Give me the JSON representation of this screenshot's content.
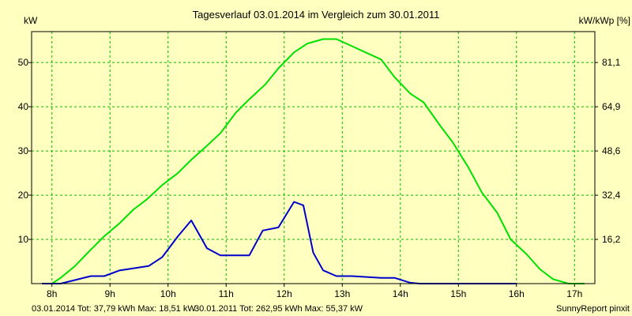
{
  "chart_data": {
    "type": "line",
    "title": "Tagesverlauf 03.01.2014 im Vergleich zum 30.01.2011",
    "ylabel_left": "kW",
    "ylabel_right": "kW/kWp [%]",
    "ylim": [
      0,
      57
    ],
    "xlim": [
      7.65,
      17.35
    ],
    "x_ticks": [
      8,
      9,
      10,
      11,
      12,
      13,
      14,
      15,
      16,
      17
    ],
    "x_tick_labels": [
      "8h",
      "9h",
      "10h",
      "11h",
      "12h",
      "13h",
      "14h",
      "15h",
      "16h",
      "17h"
    ],
    "y_ticks_left": [
      10,
      20,
      30,
      40,
      50
    ],
    "y_tick_labels_left": [
      "10",
      "20",
      "30",
      "40",
      "50"
    ],
    "y_ticks_right": [
      10,
      20,
      30,
      40,
      50
    ],
    "y_tick_labels_right": [
      "16,2",
      "32,4",
      "48,6",
      "64,9",
      "81,1"
    ],
    "grid": true,
    "series": [
      {
        "name": "03.01.2014",
        "color": "#0000cc",
        "x": [
          7.83,
          8.15,
          8.67,
          8.9,
          9.17,
          9.33,
          9.67,
          9.9,
          10.17,
          10.4,
          10.67,
          10.9,
          11.17,
          11.4,
          11.63,
          11.9,
          12.17,
          12.33,
          12.5,
          12.67,
          12.9,
          13.17,
          13.67,
          13.9,
          14.17,
          14.33,
          15.0,
          15.5,
          16.0
        ],
        "values": [
          0,
          0,
          1.7,
          1.7,
          3.0,
          3.3,
          4.0,
          6.0,
          10.7,
          14.3,
          8.0,
          6.4,
          6.4,
          6.4,
          12.0,
          12.7,
          18.5,
          17.7,
          7.0,
          3.0,
          1.7,
          1.7,
          1.3,
          1.3,
          0.2,
          0,
          0,
          0,
          0
        ]
      },
      {
        "name": "30.01.2011",
        "color": "#00e000",
        "x": [
          7.83,
          8.0,
          8.15,
          8.4,
          8.67,
          8.9,
          9.17,
          9.4,
          9.63,
          9.9,
          10.17,
          10.4,
          10.63,
          10.9,
          11.17,
          11.4,
          11.67,
          11.9,
          12.17,
          12.4,
          12.67,
          12.9,
          13.17,
          13.4,
          13.67,
          13.9,
          14.17,
          14.4,
          14.67,
          14.9,
          15.17,
          15.4,
          15.67,
          15.9,
          16.17,
          16.4,
          16.63,
          16.9,
          17.17
        ],
        "values": [
          0,
          0,
          1.3,
          4.0,
          7.7,
          10.7,
          13.7,
          16.7,
          19.0,
          22.3,
          25.0,
          28.0,
          30.7,
          34.0,
          38.7,
          41.7,
          45.0,
          48.7,
          52.3,
          54.3,
          55.3,
          55.3,
          53.7,
          52.3,
          50.7,
          46.7,
          43.0,
          41.0,
          36.0,
          32.0,
          26.3,
          20.7,
          16.0,
          10.0,
          6.7,
          3.3,
          1.0,
          0,
          0
        ]
      }
    ],
    "legend": [
      {
        "text": "03.01.2014 Tot: 37,79 kWh Max: 18,51 kW",
        "color": "#0000cc"
      },
      {
        "text": "30.01.2011 Tot: 262,95 kWh Max: 55,37 kW",
        "color": "#00e000"
      }
    ],
    "credit": "SunnyReport pinxit"
  }
}
